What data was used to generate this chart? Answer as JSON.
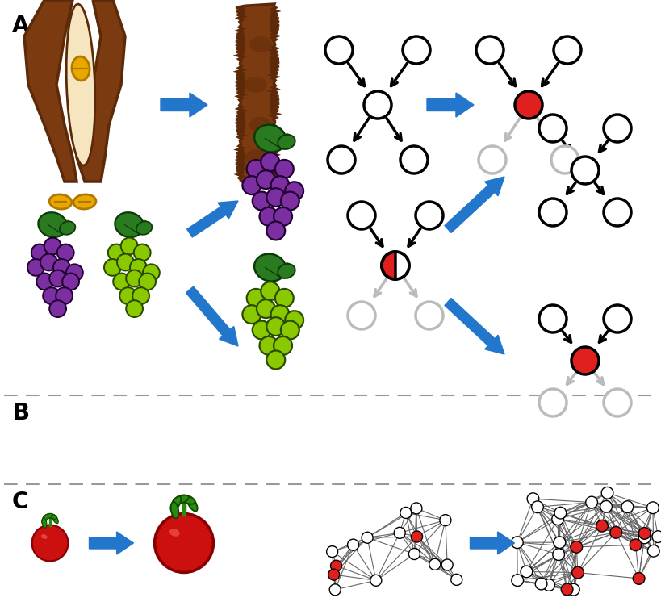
{
  "bg_color": "#ffffff",
  "dash_color": "#999999",
  "arrow_color": "#2277CC",
  "node_red": "#e0201e",
  "node_gray": "#bbbbbb",
  "pod_brown": "#7B3A10",
  "pod_brown2": "#5C2A08",
  "pod_cream": "#F5E6C0",
  "seed_gold": "#E8A800",
  "seed_gold_edge": "#B07800",
  "grape_purple": "#7B2FA0",
  "grape_purple_edge": "#220033",
  "grape_green": "#8AC800",
  "grape_green_edge": "#2a4a00",
  "grape_leaf": "#2A7A20",
  "grape_leaf_edge": "#0a3a08",
  "grape_stem": "#8B4513",
  "tomato_red": "#CC1010",
  "tomato_red2": "#E03030",
  "tomato_green": "#2a8a10",
  "tomato_green_edge": "#0a4a00",
  "sep1": 490,
  "sep2": 600,
  "label_A": "A",
  "label_B": "B",
  "label_C": "C"
}
